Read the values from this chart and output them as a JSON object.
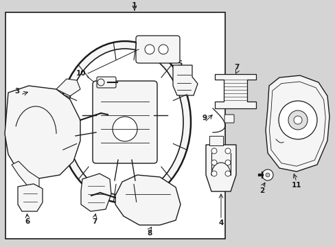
{
  "bg_color": "#d4d4d4",
  "box_face": "#ffffff",
  "part_face": "#f5f5f5",
  "lc": "#1a1a1a",
  "fig_width": 4.89,
  "fig_height": 3.6,
  "dpi": 100
}
